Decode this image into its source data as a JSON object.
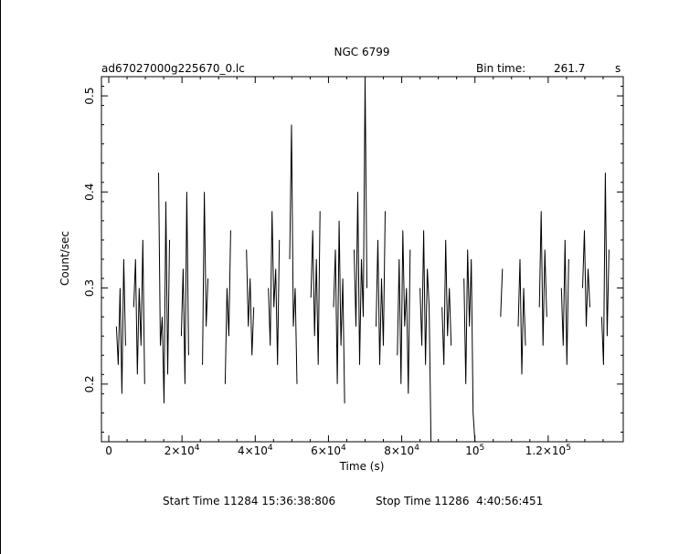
{
  "header": {
    "title": "NGC 6799",
    "file_name": "ad67027000g225670_0.lc",
    "bin_time_label": "Bin time:",
    "bin_time_value": "261.7",
    "bin_time_unit": "s"
  },
  "footer": {
    "start_time": "Start Time 11284 15:36:38:806",
    "stop_time": "Stop Time 11286  4:40:56:451"
  },
  "chart_data": {
    "type": "line",
    "title": "NGC 6799",
    "xlabel": "Time (s)",
    "ylabel": "Count/sec",
    "xlim": [
      -2000,
      140500
    ],
    "ylim": [
      0.14,
      0.52
    ],
    "x_ticks": [
      {
        "value": 0,
        "label": "0"
      },
      {
        "value": 20000,
        "label": "2×10",
        "exp": "4"
      },
      {
        "value": 40000,
        "label": "4×10",
        "exp": "4"
      },
      {
        "value": 60000,
        "label": "6×10",
        "exp": "4"
      },
      {
        "value": 80000,
        "label": "8×10",
        "exp": "4"
      },
      {
        "value": 100000,
        "label": "10",
        "exp": "5"
      },
      {
        "value": 120000,
        "label": "1.2×10",
        "exp": "5"
      }
    ],
    "y_ticks": [
      {
        "value": 0.2,
        "label": "0.2"
      },
      {
        "value": 0.3,
        "label": "0.3"
      },
      {
        "value": 0.4,
        "label": "0.4"
      },
      {
        "value": 0.5,
        "label": "0.5"
      }
    ],
    "segments": [
      {
        "x": [
          2100,
          2600,
          3100,
          3600,
          4100,
          4600
        ],
        "y": [
          0.26,
          0.22,
          0.3,
          0.19,
          0.33,
          0.24
        ]
      },
      {
        "x": [
          6800,
          7300,
          7800,
          8300,
          8800,
          9300,
          9800
        ],
        "y": [
          0.28,
          0.33,
          0.21,
          0.3,
          0.24,
          0.35,
          0.2
        ]
      },
      {
        "x": [
          13600,
          14100,
          14600,
          15100,
          15600,
          16100,
          16600
        ],
        "y": [
          0.42,
          0.24,
          0.27,
          0.18,
          0.39,
          0.21,
          0.35
        ]
      },
      {
        "x": [
          19800,
          20300,
          20800,
          21300,
          21800
        ],
        "y": [
          0.25,
          0.32,
          0.2,
          0.4,
          0.23
        ]
      },
      {
        "x": [
          25600,
          26100,
          26600,
          27100
        ],
        "y": [
          0.22,
          0.4,
          0.26,
          0.31
        ]
      },
      {
        "x": [
          31800,
          32300,
          32800,
          33300
        ],
        "y": [
          0.2,
          0.3,
          0.25,
          0.36
        ]
      },
      {
        "x": [
          37600,
          38100,
          38600,
          39100,
          39600
        ],
        "y": [
          0.34,
          0.26,
          0.31,
          0.23,
          0.28
        ]
      },
      {
        "x": [
          43600,
          44100,
          44600,
          45100,
          45600,
          46100,
          46600
        ],
        "y": [
          0.3,
          0.24,
          0.38,
          0.28,
          0.32,
          0.22,
          0.35
        ]
      },
      {
        "x": [
          49400,
          49900,
          50400,
          50900,
          51400
        ],
        "y": [
          0.33,
          0.47,
          0.26,
          0.3,
          0.2
        ]
      },
      {
        "x": [
          55200,
          55700,
          56200,
          56700,
          57200,
          57700
        ],
        "y": [
          0.29,
          0.36,
          0.25,
          0.33,
          0.22,
          0.38
        ]
      },
      {
        "x": [
          61400,
          61900,
          62400,
          62900,
          63400,
          63900,
          64400
        ],
        "y": [
          0.28,
          0.34,
          0.2,
          0.37,
          0.24,
          0.31,
          0.18
        ]
      },
      {
        "x": [
          67000,
          67500,
          68000,
          68500,
          69000,
          69500,
          70000,
          70500
        ],
        "y": [
          0.34,
          0.26,
          0.4,
          0.22,
          0.33,
          0.27,
          0.52,
          0.3
        ]
      },
      {
        "x": [
          73000,
          73500,
          74000,
          74500,
          75000,
          75500
        ],
        "y": [
          0.26,
          0.35,
          0.22,
          0.31,
          0.24,
          0.38
        ]
      },
      {
        "x": [
          78800,
          79300,
          79800,
          80300,
          80800,
          81300,
          81800,
          82300
        ],
        "y": [
          0.23,
          0.33,
          0.2,
          0.36,
          0.26,
          0.3,
          0.19,
          0.34
        ]
      },
      {
        "x": [
          85000,
          85500,
          86000,
          86500,
          87000,
          87500,
          88000
        ],
        "y": [
          0.3,
          0.24,
          0.36,
          0.22,
          0.32,
          0.28,
          0.14
        ]
      },
      {
        "x": [
          91000,
          91500,
          92000,
          92500,
          93000,
          93500
        ],
        "y": [
          0.28,
          0.22,
          0.35,
          0.25,
          0.3,
          0.24
        ]
      },
      {
        "x": [
          97000,
          97500,
          98000,
          98500,
          99000,
          99500,
          100000
        ],
        "y": [
          0.31,
          0.2,
          0.34,
          0.26,
          0.33,
          0.17,
          0.14
        ]
      },
      {
        "x": [
          107000,
          107500
        ],
        "y": [
          0.27,
          0.32
        ]
      },
      {
        "x": [
          111800,
          112300,
          112800,
          113300,
          113800
        ],
        "y": [
          0.26,
          0.33,
          0.21,
          0.3,
          0.24
        ]
      },
      {
        "x": [
          117600,
          118100,
          118600,
          119100,
          119600
        ],
        "y": [
          0.28,
          0.38,
          0.24,
          0.34,
          0.27
        ]
      },
      {
        "x": [
          123600,
          124100,
          124600,
          125100,
          125600
        ],
        "y": [
          0.3,
          0.24,
          0.35,
          0.22,
          0.33
        ]
      },
      {
        "x": [
          129400,
          129900,
          130400,
          130900,
          131400
        ],
        "y": [
          0.3,
          0.36,
          0.26,
          0.32,
          0.28
        ]
      },
      {
        "x": [
          134600,
          135100,
          135600,
          136100,
          136600
        ],
        "y": [
          0.27,
          0.22,
          0.42,
          0.25,
          0.34
        ]
      }
    ]
  }
}
